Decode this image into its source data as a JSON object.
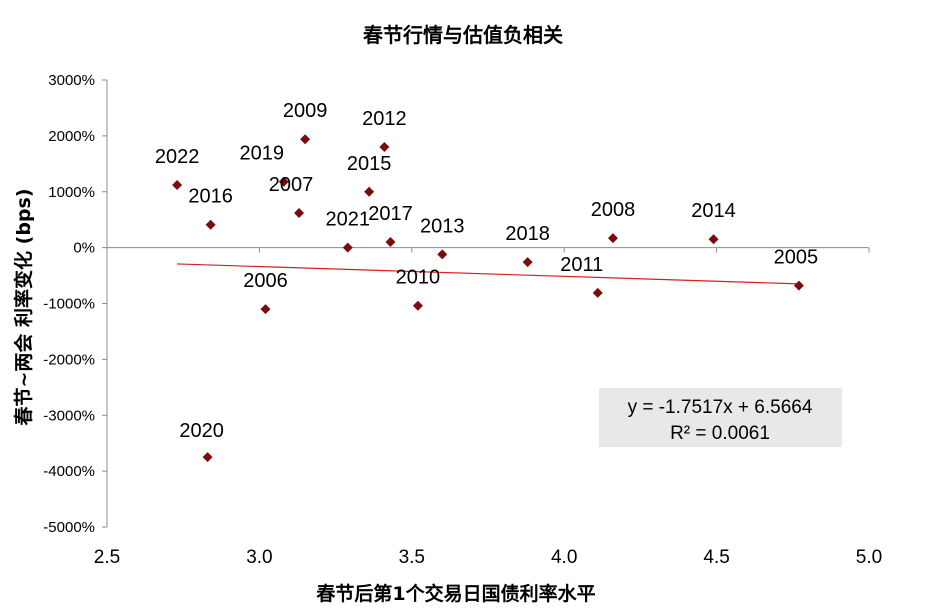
{
  "chart_data": {
    "type": "scatter",
    "title": "春节行情与估值负相关",
    "xlabel": "春节后第1个交易日国债利率水平",
    "ylabel": "春节~两会 利率变化 (bps)",
    "xlim": [
      2.5,
      5.0
    ],
    "ylim": [
      -5000,
      3000
    ],
    "x_ticks": [
      "2.5",
      "3.0",
      "3.5",
      "4.0",
      "4.5",
      "5.0"
    ],
    "y_ticks": [
      "3000%",
      "2000%",
      "1000%",
      "0%",
      "-1000%",
      "-2000%",
      "-3000%",
      "-4000%",
      "-5000%"
    ],
    "series": [
      {
        "marker": "diamond",
        "color": "#7b0c0c",
        "points": [
          {
            "label": "2022",
            "x": 2.73,
            "y": 1120
          },
          {
            "label": "2016",
            "x": 2.84,
            "y": 410
          },
          {
            "label": "2020",
            "x": 2.83,
            "y": -3750
          },
          {
            "label": "2006",
            "x": 3.02,
            "y": -1100
          },
          {
            "label": "2019",
            "x": 3.08,
            "y": 1180
          },
          {
            "label": "2007",
            "x": 3.13,
            "y": 620
          },
          {
            "label": "2009",
            "x": 3.15,
            "y": 1940
          },
          {
            "label": "2021",
            "x": 3.29,
            "y": 0
          },
          {
            "label": "2015",
            "x": 3.36,
            "y": 1000
          },
          {
            "label": "2012",
            "x": 3.41,
            "y": 1800
          },
          {
            "label": "2017",
            "x": 3.43,
            "y": 100
          },
          {
            "label": "2010",
            "x": 3.52,
            "y": -1040
          },
          {
            "label": "2013",
            "x": 3.6,
            "y": -120
          },
          {
            "label": "2018",
            "x": 3.88,
            "y": -260
          },
          {
            "label": "2011",
            "x": 4.11,
            "y": -810
          },
          {
            "label": "2008",
            "x": 4.16,
            "y": 170
          },
          {
            "label": "2014",
            "x": 4.49,
            "y": 150
          },
          {
            "label": "2005",
            "x": 4.77,
            "y": -680
          }
        ]
      }
    ],
    "trendline": {
      "type": "linear",
      "color": "#d42020",
      "x_range": [
        2.73,
        4.77
      ],
      "equation": "y = -1.7517x + 6.5664",
      "r_squared": "R² = 0.0061"
    },
    "grid": false,
    "legend": "none"
  }
}
